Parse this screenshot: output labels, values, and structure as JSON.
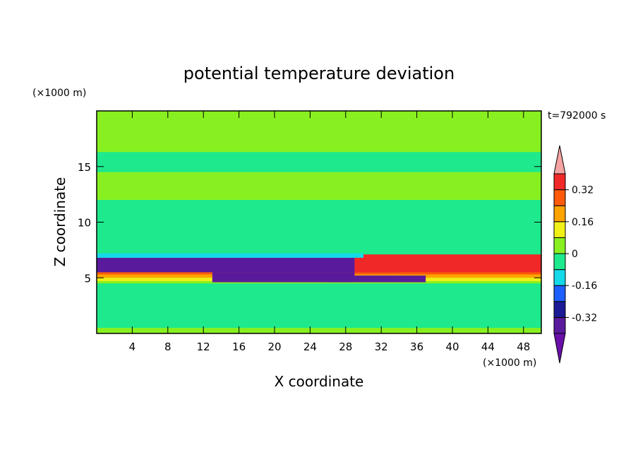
{
  "chart_data": {
    "type": "heatmap",
    "title": "potential temperature deviation",
    "time_label": "t=792000 s",
    "xlabel": "X coordinate",
    "ylabel": "Z coordinate",
    "x_unit": "(×1000 m)",
    "y_unit": "(×1000 m)",
    "xlim": [
      0,
      50
    ],
    "ylim": [
      0,
      20
    ],
    "x_ticks": [
      4,
      8,
      12,
      16,
      20,
      24,
      28,
      32,
      36,
      40,
      44,
      48
    ],
    "y_ticks": [
      5,
      10,
      15
    ],
    "colorbar": {
      "boundaries": [
        -0.4,
        -0.32,
        -0.24,
        -0.16,
        -0.08,
        0,
        0.08,
        0.16,
        0.24,
        0.32,
        0.4
      ],
      "tick_labels": [
        "-0.32",
        "-0.16",
        "0",
        "0.16",
        "0.32"
      ],
      "tick_values": [
        -0.32,
        -0.16,
        0,
        0.16,
        0.32
      ],
      "colors": [
        "#5a1a9c",
        "#1b1b96",
        "#1e5fff",
        "#15d8e8",
        "#1ee98c",
        "#88f020",
        "#f0f018",
        "#ffa300",
        "#ff5a0a",
        "#f02828"
      ],
      "over_color": "#f5a3a3",
      "under_color": "#6a10a8",
      "extend": "both"
    },
    "dominant_color": "#88f020",
    "regions": [
      {
        "x": [
          0,
          50
        ],
        "z": [
          0,
          20
        ],
        "value": 0.02
      },
      {
        "x": [
          0,
          50
        ],
        "z": [
          14.5,
          16.3
        ],
        "value": -0.02
      },
      {
        "x": [
          0,
          50
        ],
        "z": [
          0.5,
          4.5
        ],
        "value": -0.02
      },
      {
        "x": [
          0,
          50
        ],
        "z": [
          7,
          12
        ],
        "value": -0.02
      },
      {
        "x": [
          0,
          50
        ],
        "z": [
          5.5,
          6.0
        ],
        "value": 0.36
      },
      {
        "x": [
          0,
          50
        ],
        "z": [
          5.3,
          5.5
        ],
        "value": 0.3
      },
      {
        "x": [
          0,
          50
        ],
        "z": [
          5.0,
          5.3
        ],
        "value": 0.2
      },
      {
        "x": [
          0,
          50
        ],
        "z": [
          4.7,
          5.0
        ],
        "value": 0.1
      },
      {
        "x": [
          0,
          50
        ],
        "z": [
          4.5,
          4.7
        ],
        "value": 0.04
      },
      {
        "x": [
          0,
          34
        ],
        "z": [
          5.5,
          6.8
        ],
        "value": -0.35
      },
      {
        "x": [
          13,
          29
        ],
        "z": [
          4.6,
          5.5
        ],
        "value": -0.35
      },
      {
        "x": [
          26,
          37
        ],
        "z": [
          4.6,
          5.2
        ],
        "value": -0.35
      },
      {
        "x": [
          29,
          50
        ],
        "z": [
          5.5,
          7.1
        ],
        "value": 0.36
      },
      {
        "x": [
          0,
          30
        ],
        "z": [
          6.8,
          7.2
        ],
        "value": -0.1
      }
    ]
  }
}
